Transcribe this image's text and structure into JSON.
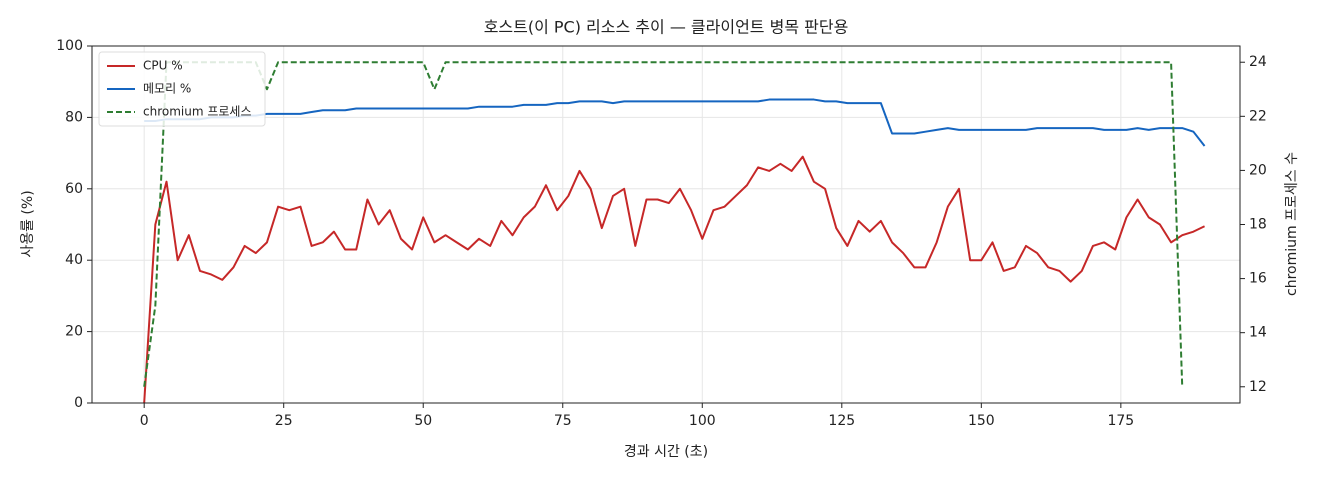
{
  "chart_data": {
    "type": "line",
    "title": "호스트(이 PC) 리소스 추이 — 클라이언트 병목 판단용",
    "x_label": "경과 시간 (초)",
    "y_label": "사용률 (%)",
    "y2_label": "chromium 프로세스 수",
    "x": [
      0,
      2,
      4,
      6,
      8,
      10,
      12,
      14,
      16,
      18,
      20,
      22,
      24,
      26,
      28,
      30,
      32,
      34,
      36,
      38,
      40,
      42,
      44,
      46,
      48,
      50,
      52,
      54,
      56,
      58,
      60,
      62,
      64,
      66,
      68,
      70,
      72,
      74,
      76,
      78,
      80,
      82,
      84,
      86,
      88,
      90,
      92,
      94,
      96,
      98,
      100,
      102,
      104,
      106,
      108,
      110,
      112,
      114,
      116,
      118,
      120,
      122,
      124,
      126,
      128,
      130,
      132,
      134,
      136,
      138,
      140,
      142,
      144,
      146,
      148,
      150,
      152,
      154,
      156,
      158,
      160,
      162,
      164,
      166,
      168,
      170,
      172,
      174,
      176,
      178,
      180,
      182,
      184,
      186,
      188,
      190
    ],
    "series": [
      {
        "name": "CPU %",
        "color": "#c62828",
        "dashed": false,
        "values": [
          0,
          50,
          62,
          40,
          47,
          37,
          36,
          34.5,
          38,
          44,
          42,
          45,
          55,
          54,
          55,
          44,
          45,
          48,
          43,
          43,
          57,
          50,
          54,
          46,
          43,
          52,
          45,
          47,
          45,
          43,
          46,
          44,
          51,
          47,
          52,
          55,
          61,
          54,
          58,
          65,
          60,
          49,
          58,
          60,
          44,
          57,
          57,
          56,
          60,
          54,
          46,
          54,
          55,
          58,
          61,
          66,
          65,
          67,
          65,
          69,
          62,
          60,
          49,
          44,
          51,
          48,
          51,
          45,
          42,
          38,
          38,
          45,
          55,
          60,
          40,
          40,
          45,
          37,
          38,
          44,
          42,
          38,
          37,
          34,
          37,
          44,
          45,
          43,
          52,
          57,
          52,
          50,
          45,
          47,
          48,
          49.5
        ]
      },
      {
        "name": "메모리 %",
        "color": "#1565c0",
        "dashed": false,
        "values": [
          79,
          79,
          79.5,
          79.5,
          79.5,
          79.5,
          80,
          80,
          80,
          80.5,
          80.5,
          81,
          81,
          81,
          81,
          81.5,
          82,
          82,
          82,
          82.5,
          82.5,
          82.5,
          82.5,
          82.5,
          82.5,
          82.5,
          82.5,
          82.5,
          82.5,
          82.5,
          83,
          83,
          83,
          83,
          83.5,
          83.5,
          83.5,
          84,
          84,
          84.5,
          84.5,
          84.5,
          84,
          84.5,
          84.5,
          84.5,
          84.5,
          84.5,
          84.5,
          84.5,
          84.5,
          84.5,
          84.5,
          84.5,
          84.5,
          84.5,
          85,
          85,
          85,
          85,
          85,
          84.5,
          84.5,
          84,
          84,
          84,
          84,
          75.5,
          75.5,
          75.5,
          76,
          76.5,
          77,
          76.5,
          76.5,
          76.5,
          76.5,
          76.5,
          76.5,
          76.5,
          77,
          77,
          77,
          77,
          77,
          77,
          76.5,
          76.5,
          76.5,
          77,
          76.5,
          77,
          77,
          77,
          76,
          72
        ]
      },
      {
        "name": "chromium 프로세스",
        "color": "#2e7d32",
        "dashed": true,
        "axis": "y2",
        "values": [
          12,
          15,
          24,
          24,
          24,
          24,
          24,
          24,
          24,
          24,
          24,
          23,
          24,
          24,
          24,
          24,
          24,
          24,
          24,
          24,
          24,
          24,
          24,
          24,
          24,
          24,
          23,
          24,
          24,
          24,
          24,
          24,
          24,
          24,
          24,
          24,
          24,
          24,
          24,
          24,
          24,
          24,
          24,
          24,
          24,
          24,
          24,
          24,
          24,
          24,
          24,
          24,
          24,
          24,
          24,
          24,
          24,
          24,
          24,
          24,
          24,
          24,
          24,
          24,
          24,
          24,
          24,
          24,
          24,
          24,
          24,
          24,
          24,
          24,
          24,
          24,
          24,
          24,
          24,
          24,
          24,
          24,
          24,
          24,
          24,
          24,
          24,
          24,
          24,
          24,
          24,
          24,
          24,
          12,
          null,
          null
        ]
      }
    ],
    "xlim": [
      -9.35,
      196.35
    ],
    "xticks": [
      0,
      25,
      50,
      75,
      100,
      125,
      150,
      175
    ],
    "ylim": [
      0,
      100
    ],
    "yticks": [
      0,
      20,
      40,
      60,
      80,
      100
    ],
    "y2lim": [
      11.4,
      24.6
    ],
    "y2ticks": [
      12,
      14,
      16,
      18,
      20,
      22,
      24
    ],
    "grid": true,
    "legend": "upper left"
  }
}
